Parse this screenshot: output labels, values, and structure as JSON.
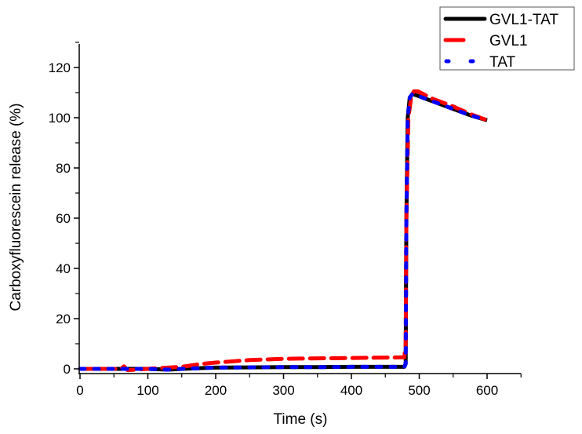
{
  "chart_data": {
    "type": "line",
    "title": "",
    "xlabel": "Time (s)",
    "ylabel": "Carboxyfluorescein release (%)",
    "xlim": [
      0,
      650
    ],
    "ylim": [
      -2,
      130
    ],
    "grid": false,
    "legend_position": "top-right (outside plot, above)",
    "x_ticks": [
      0,
      100,
      200,
      300,
      400,
      500,
      600
    ],
    "x_minor_ticks": [
      50,
      150,
      250,
      350,
      450,
      550,
      650
    ],
    "y_ticks": [
      0,
      20,
      40,
      60,
      80,
      100,
      120
    ],
    "y_minor_ticks": [
      10,
      30,
      50,
      70,
      90,
      110,
      130
    ],
    "series": [
      {
        "name": "GVL1-TAT",
        "color": "#000000",
        "style": "solid",
        "x": [
          0,
          50,
          100,
          130,
          150,
          200,
          250,
          300,
          350,
          400,
          450,
          478,
          480,
          481,
          483,
          486,
          490,
          495,
          520,
          550,
          575,
          600
        ],
        "y": [
          0,
          0,
          0,
          -0.3,
          0,
          0.5,
          0.6,
          0.7,
          0.7,
          0.8,
          0.8,
          0.8,
          2,
          60,
          100,
          108,
          109.5,
          109,
          106.5,
          103.5,
          101,
          99
        ]
      },
      {
        "name": "GVL1",
        "color": "#ff0000",
        "style": "dashed",
        "x": [
          0,
          30,
          60,
          65,
          70,
          100,
          130,
          150,
          180,
          200,
          250,
          300,
          350,
          400,
          450,
          478,
          480,
          481,
          484,
          488,
          492,
          498,
          520,
          550,
          575,
          600
        ],
        "y": [
          0,
          0,
          0,
          1,
          -0.5,
          0,
          0.5,
          0.8,
          2,
          2.5,
          3.5,
          4,
          4.2,
          4.3,
          4.5,
          4.6,
          10,
          60,
          100,
          108,
          110.5,
          110.5,
          107.5,
          104.5,
          101.5,
          99
        ]
      },
      {
        "name": "TAT",
        "color": "#0000ff",
        "style": "dotted",
        "x": [
          0,
          50,
          100,
          130,
          150,
          200,
          250,
          300,
          350,
          400,
          450,
          478,
          480,
          481,
          483,
          486,
          490,
          495,
          520,
          550,
          575,
          600
        ],
        "y": [
          0,
          0,
          0,
          -0.3,
          0,
          0.5,
          0.6,
          0.7,
          0.7,
          0.8,
          0.8,
          0.8,
          2,
          60,
          100,
          108,
          109.5,
          109,
          106.5,
          103.5,
          101,
          99
        ]
      }
    ]
  },
  "legend": {
    "items": [
      {
        "label": "GVL1-TAT",
        "color": "#000000",
        "style": "solid"
      },
      {
        "label": "GVL1",
        "color": "#ff0000",
        "style": "dashed"
      },
      {
        "label": "TAT",
        "color": "#0000ff",
        "style": "dotted"
      }
    ]
  },
  "axes": {
    "x_title": "Time (s)",
    "y_title": "Carboxyfluorescein release (%)"
  }
}
